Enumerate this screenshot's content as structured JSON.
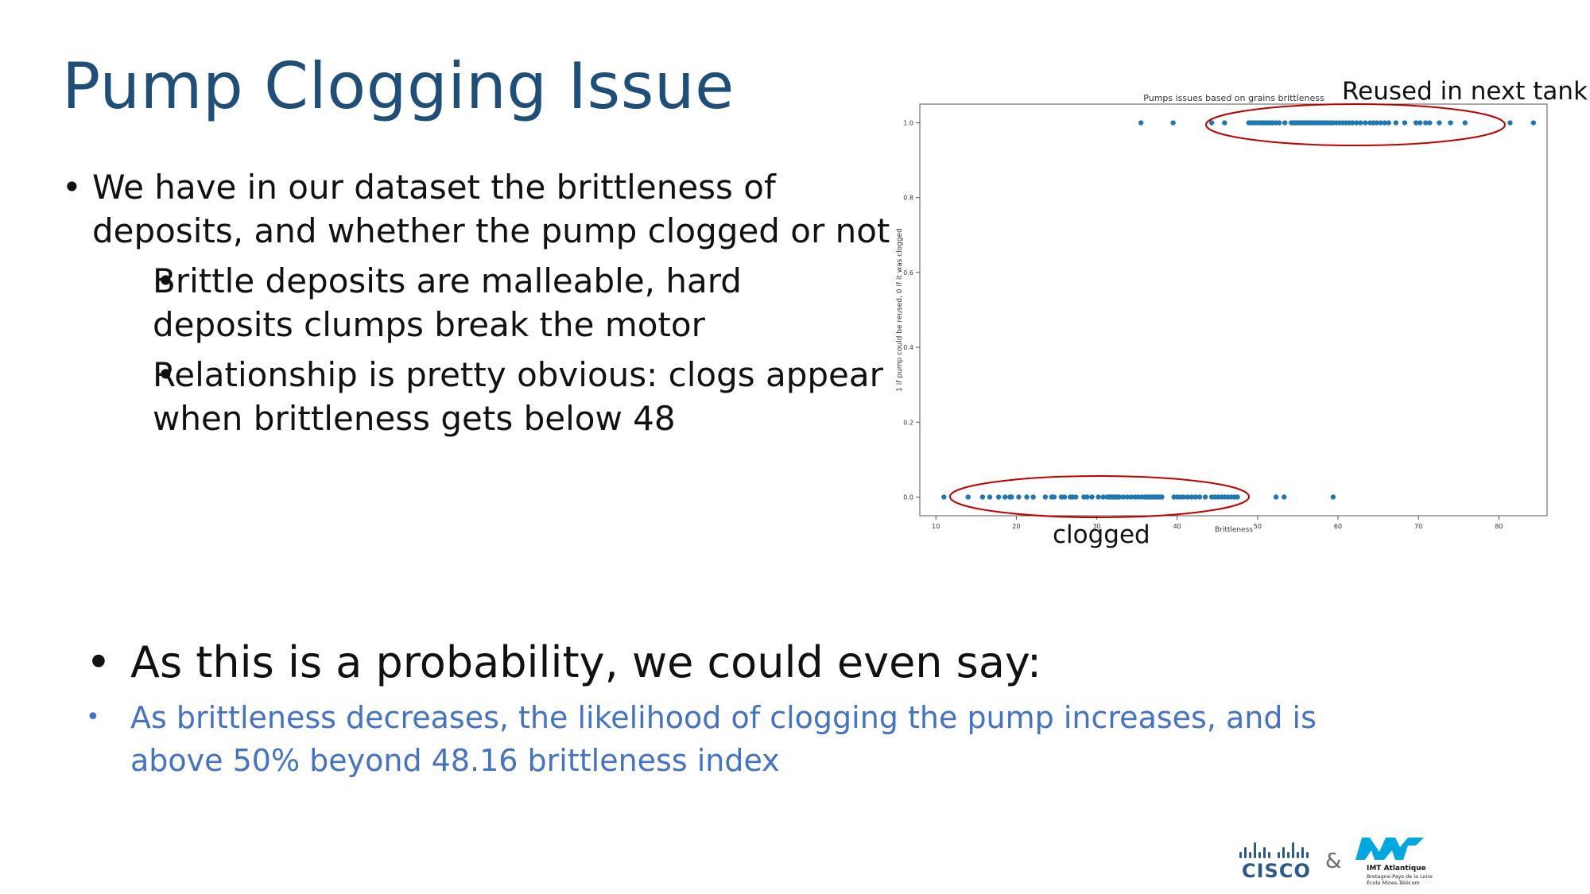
{
  "title": "Pump Clogging Issue",
  "bullets": {
    "b1": "We have in our dataset the brittleness of deposits, and whether the pump clogged or not",
    "b1a": "Brittle deposits are malleable, hard deposits clumps break the motor",
    "b1b": "Relationship is pretty obvious: clogs appear when brittleness gets below 48",
    "b2": "As this is a probability, we could even say:",
    "b2a": "As brittleness decreases, the likelihood of clogging the pump increases, and is above 50% beyond 48.16 brittleness index"
  },
  "annotations": {
    "top": "Reused in next tank",
    "bottom": "clogged"
  },
  "logos": {
    "cisco": "CISCO",
    "amp": "&",
    "imt": "IMT Atlantique",
    "imt_sub1": "Bretagne-Pays de la Loire",
    "imt_sub2": "École Mines-Télécom"
  },
  "colors": {
    "points": "#1f77b4",
    "ellipse": "#c00000",
    "title": "#1f4e79",
    "highlight_text": "#4472c4"
  },
  "chart_data": {
    "type": "scatter",
    "title": "Pumps issues based on grains brittleness",
    "xlabel": "Brittleness",
    "ylabel": "1 if pump could be reused, 0 if it was clogged",
    "xlim": [
      8,
      86
    ],
    "ylim": [
      -0.05,
      1.05
    ],
    "xticks": [
      10,
      20,
      30,
      40,
      50,
      60,
      70,
      80
    ],
    "yticks": [
      0.0,
      0.2,
      0.4,
      0.6,
      0.8,
      1.0
    ],
    "grid": false,
    "series": [
      {
        "color": "#1f77b4",
        "x": [
          35.5,
          39.5,
          44.3,
          45.9,
          48.9,
          49.2,
          49.4,
          49.7,
          50.0,
          50.3,
          50.6,
          50.8,
          51.1,
          51.4,
          51.6,
          51.9,
          52.3,
          52.7,
          53.4,
          54.2,
          54.4,
          54.6,
          54.8,
          55.0,
          55.3,
          55.5,
          55.7,
          55.9,
          56.1,
          56.4,
          56.7,
          57.0,
          57.3,
          57.6,
          57.9,
          58.2,
          58.5,
          58.8,
          59.1,
          59.4,
          59.8,
          60.2,
          60.6,
          61.0,
          61.4,
          61.8,
          62.3,
          62.8,
          63.4,
          64.0,
          64.4,
          64.8,
          65.3,
          65.8,
          66.3,
          67.2,
          68.3,
          69.7,
          70.2,
          70.9,
          71.4,
          72.6,
          74.0,
          75.8,
          81.4,
          84.3
        ],
        "y": [
          1,
          1,
          1,
          1,
          1,
          1,
          1,
          1,
          1,
          1,
          1,
          1,
          1,
          1,
          1,
          1,
          1,
          1,
          1,
          1,
          1,
          1,
          1,
          1,
          1,
          1,
          1,
          1,
          1,
          1,
          1,
          1,
          1,
          1,
          1,
          1,
          1,
          1,
          1,
          1,
          1,
          1,
          1,
          1,
          1,
          1,
          1,
          1,
          1,
          1,
          1,
          1,
          1,
          1,
          1,
          1,
          1,
          1,
          1,
          1,
          1,
          1,
          1,
          1,
          1,
          1
        ]
      },
      {
        "color": "#1f77b4",
        "x": [
          11.0,
          14.0,
          15.8,
          16.7,
          17.8,
          18.6,
          19.2,
          19.4,
          20.3,
          21.3,
          22.1,
          23.6,
          24.4,
          24.7,
          25.6,
          26.0,
          26.7,
          27.0,
          27.4,
          28.4,
          28.8,
          29.4,
          30.2,
          30.8,
          31.3,
          31.6,
          31.8,
          32.0,
          32.2,
          32.4,
          32.6,
          32.8,
          33.3,
          33.8,
          34.3,
          34.8,
          35.2,
          35.6,
          36.0,
          36.3,
          36.5,
          36.7,
          36.9,
          37.1,
          37.3,
          37.5,
          37.8,
          38.1,
          39.6,
          40.0,
          40.4,
          40.8,
          41.3,
          41.8,
          42.3,
          42.8,
          43.5,
          44.3,
          44.7,
          45.1,
          45.5,
          45.9,
          46.3,
          46.7,
          47.1,
          47.5,
          52.3,
          53.3,
          59.4
        ],
        "y": [
          0,
          0,
          0,
          0,
          0,
          0,
          0,
          0,
          0,
          0,
          0,
          0,
          0,
          0,
          0,
          0,
          0,
          0,
          0,
          0,
          0,
          0,
          0,
          0,
          0,
          0,
          0,
          0,
          0,
          0,
          0,
          0,
          0,
          0,
          0,
          0,
          0,
          0,
          0,
          0,
          0,
          0,
          0,
          0,
          0,
          0,
          0,
          0,
          0,
          0,
          0,
          0,
          0,
          0,
          0,
          0,
          0,
          0,
          0,
          0,
          0,
          0,
          0,
          0,
          0,
          0,
          0,
          0,
          0
        ]
      }
    ]
  }
}
